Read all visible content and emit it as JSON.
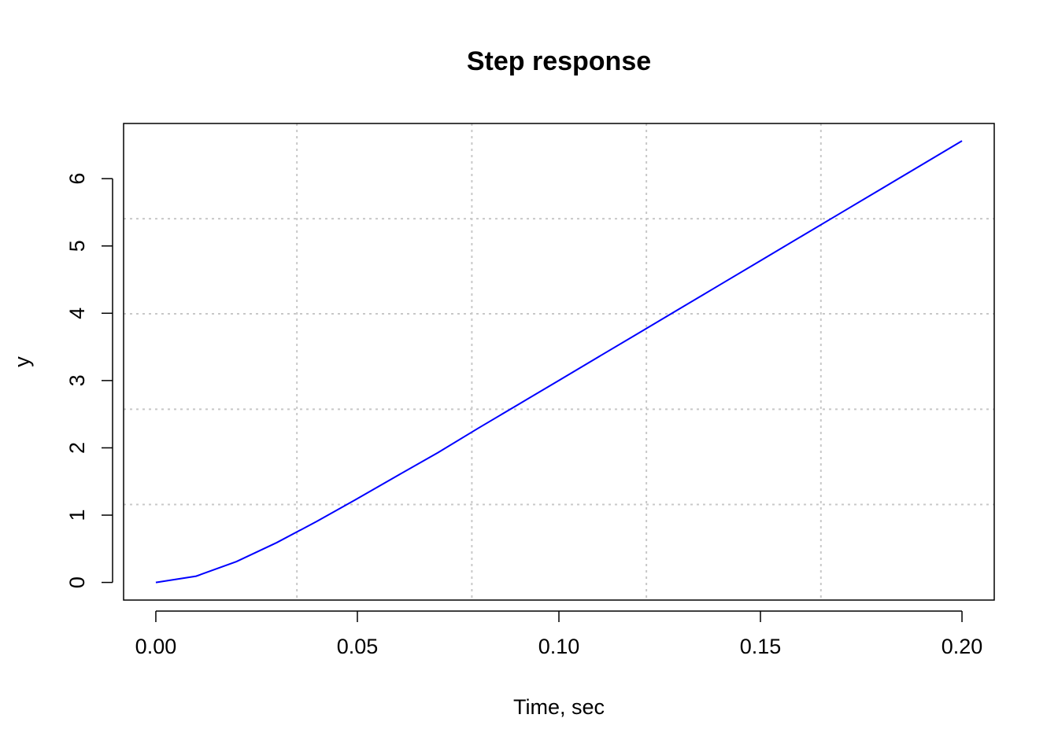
{
  "chart_data": {
    "type": "line",
    "title": "Step response",
    "xlabel": "Time, sec",
    "ylabel": "y",
    "x": [
      0,
      0.01,
      0.02,
      0.03,
      0.04,
      0.05,
      0.06,
      0.07,
      0.08,
      0.09,
      0.1,
      0.11,
      0.12,
      0.13,
      0.14,
      0.15,
      0.16,
      0.17,
      0.18,
      0.19,
      0.2
    ],
    "series": [
      {
        "color": "#0000ff",
        "values": [
          0,
          0.093,
          0.31,
          0.592,
          0.909,
          1.245,
          1.589,
          1.929,
          2.292,
          2.647,
          3.002,
          3.358,
          3.713,
          4.069,
          4.425,
          4.781,
          5.137,
          5.493,
          5.849,
          6.205,
          6.561
        ]
      }
    ],
    "xlim": [
      -0.008,
      0.208
    ],
    "ylim": [
      -0.262,
      6.82
    ],
    "xticks": [
      {
        "value": 0,
        "label": "0.00"
      },
      0.05,
      {
        "value": 0.1,
        "label": "0.10"
      },
      0.15,
      {
        "value": 0.2,
        "label": "0.20"
      }
    ],
    "yticks": [
      0,
      1,
      2,
      3,
      4,
      5,
      6
    ],
    "xgrid": [
      0.035,
      0.0784,
      0.1217,
      0.165
    ],
    "ygrid": [
      1.158,
      2.573,
      3.992,
      5.404
    ],
    "grid": true
  }
}
